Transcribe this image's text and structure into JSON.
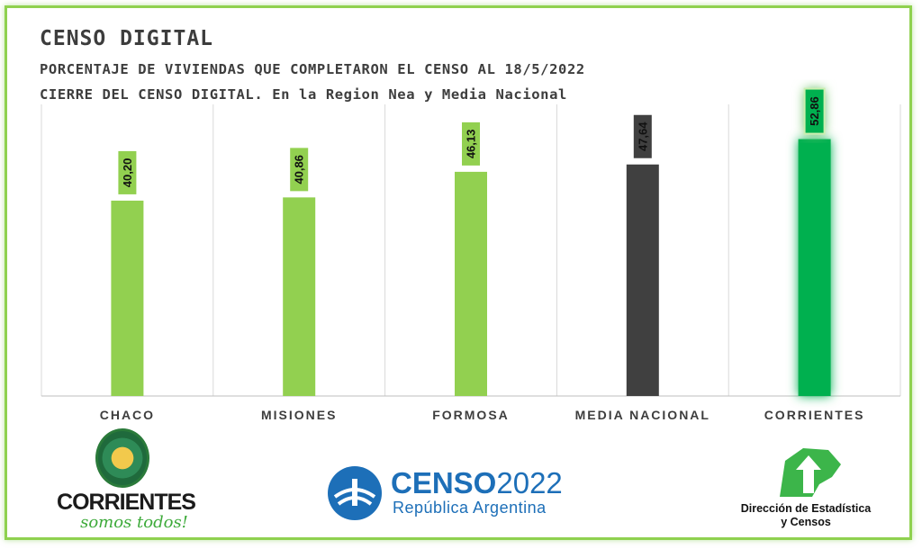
{
  "header": {
    "title": "CENSO  DIGITAL",
    "subtitle_line1": "PORCENTAJE DE VIVIENDAS QUE COMPLETARON EL CENSO AL 18/5/2022",
    "subtitle_line2": "CIERRE DEL CENSO DIGITAL. En la Region Nea y Media Nacional"
  },
  "colors": {
    "bar_green": "#92d050",
    "bar_dark": "#404040",
    "bar_highlight": "#00b050",
    "grid": "#d9d9d9",
    "frame": "#8fd14f"
  },
  "chart_data": {
    "type": "bar",
    "title": "",
    "xlabel": "",
    "ylabel": "",
    "ylim": [
      0,
      60
    ],
    "grid": true,
    "categories": [
      "CHACO",
      "MISIONES",
      "FORMOSA",
      "MEDIA NACIONAL",
      "CORRIENTES"
    ],
    "values": [
      40.2,
      40.86,
      46.13,
      47.64,
      52.86
    ],
    "value_labels": [
      "40,20",
      "40,86",
      "46,13",
      "47,64",
      "52,86"
    ],
    "bar_colors": [
      "#92d050",
      "#92d050",
      "#92d050",
      "#404040",
      "#00b050"
    ]
  },
  "logos": {
    "corrientes": {
      "name": "CORRIENTES",
      "tagline": "somos todos!"
    },
    "censo": {
      "name": "CENSO",
      "year": "2022",
      "subtitle": "República Argentina"
    },
    "direccion": {
      "line1": "Dirección de Estadística",
      "line2": "y Censos"
    }
  }
}
